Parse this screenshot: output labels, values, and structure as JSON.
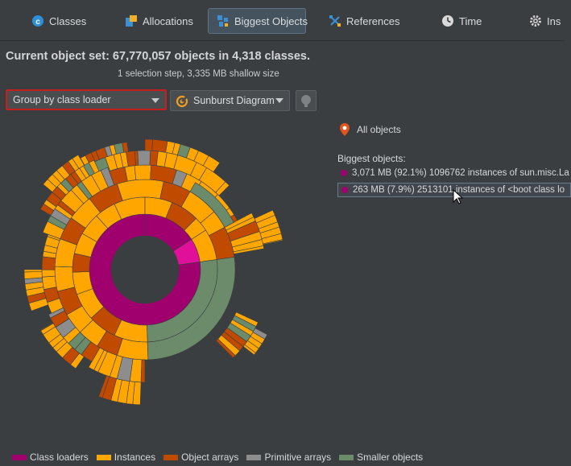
{
  "tabs": [
    {
      "label": "Classes",
      "icon": "classes-icon"
    },
    {
      "label": "Allocations",
      "icon": "allocations-icon"
    },
    {
      "label": "Biggest Objects",
      "icon": "biggest-objects-icon",
      "active": true
    },
    {
      "label": "References",
      "icon": "references-icon"
    },
    {
      "label": "Time",
      "icon": "clock-icon"
    },
    {
      "label": "Ins",
      "icon": "gear-icon"
    }
  ],
  "header": {
    "title": "Current object set:  67,770,057 objects in 4,318 classes.",
    "subtitle": "1 selection step, 3,335 MB shallow size"
  },
  "controls": {
    "group_by": "Group by class loader",
    "diagram": "Sunburst Diagram"
  },
  "side_panel": {
    "all_objects": "All objects",
    "biggest_label": "Biggest objects:",
    "objects": [
      {
        "text": "3,071 MB (92.1%) 1096762 instances of sun.misc.La"
      },
      {
        "text": "263 MB (7.9%) 2513101 instances of <boot class lo"
      }
    ]
  },
  "legend": [
    {
      "label": "Class loaders",
      "color": "#a0006d"
    },
    {
      "label": "Instances",
      "color": "#ffa600"
    },
    {
      "label": "Object arrays",
      "color": "#c04b00"
    },
    {
      "label": "Primitive arrays",
      "color": "#8d8d8d"
    },
    {
      "label": "Smaller objects",
      "color": "#6b8b6b"
    }
  ],
  "colors": {
    "class_loader": "#a0006d",
    "class_loader_alt": "#e0109a",
    "instances": "#ffa600",
    "object_arrays": "#c04b00",
    "primitive_arrays": "#8d8d8d",
    "smaller_objects": "#6b8b6b",
    "selection_border": "#c81e1e"
  }
}
